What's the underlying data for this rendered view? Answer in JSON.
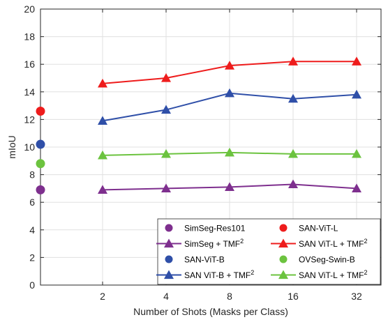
{
  "chart_data": {
    "type": "line",
    "xlabel": "Number of Shots (Masks per Class)",
    "ylabel": "mIoU",
    "ylim": [
      0,
      20
    ],
    "yticks": [
      0,
      2,
      4,
      6,
      8,
      10,
      12,
      14,
      16,
      18,
      20
    ],
    "x_categories": [
      "2",
      "4",
      "8",
      "16",
      "32"
    ],
    "grid": true,
    "legend_position": "bottom-right",
    "zero_shot_points": [
      {
        "name": "SimSeg-Res101",
        "value": 6.9,
        "color": "#7E2F8E"
      },
      {
        "name": "SAN-ViT-L",
        "value": 12.6,
        "color": "#EE1C1C"
      },
      {
        "name": "SAN-ViT-B",
        "value": 10.2,
        "color": "#2F4FA8"
      },
      {
        "name": "OVSeg-Swin-B",
        "value": 8.8,
        "color": "#6CC33F"
      }
    ],
    "series": [
      {
        "name": "SimSeg + TMF",
        "sup": "2",
        "color": "#7E2F8E",
        "values": [
          6.9,
          7.0,
          7.1,
          7.3,
          7.0
        ]
      },
      {
        "name": "SAN ViT-L + TMF",
        "sup": "2",
        "color": "#EE1C1C",
        "values": [
          14.6,
          15.0,
          15.9,
          16.2,
          16.2
        ]
      },
      {
        "name": "SAN ViT-B + TMF",
        "sup": "2",
        "color": "#2F4FA8",
        "values": [
          11.9,
          12.7,
          13.9,
          13.5,
          13.8
        ]
      },
      {
        "name": "SAN ViT-L + TMF",
        "sup": "2",
        "color": "#6CC33F",
        "values": [
          9.4,
          9.5,
          9.6,
          9.5,
          9.5
        ]
      }
    ],
    "legend": [
      {
        "kind": "dot",
        "name": "SimSeg-Res101",
        "sup": "",
        "color": "#7E2F8E"
      },
      {
        "kind": "dot",
        "name": "SAN-ViT-L",
        "sup": "",
        "color": "#EE1C1C"
      },
      {
        "kind": "line",
        "name": "SimSeg + TMF",
        "sup": "2",
        "color": "#7E2F8E"
      },
      {
        "kind": "line",
        "name": "SAN ViT-L + TMF",
        "sup": "2",
        "color": "#EE1C1C"
      },
      {
        "kind": "dot",
        "name": "SAN-ViT-B",
        "sup": "",
        "color": "#2F4FA8"
      },
      {
        "kind": "dot",
        "name": "OVSeg-Swin-B",
        "sup": "",
        "color": "#6CC33F"
      },
      {
        "kind": "line",
        "name": "SAN ViT-B + TMF",
        "sup": "2",
        "color": "#2F4FA8"
      },
      {
        "kind": "line",
        "name": "SAN ViT-L + TMF",
        "sup": "2",
        "color": "#6CC33F"
      }
    ]
  }
}
